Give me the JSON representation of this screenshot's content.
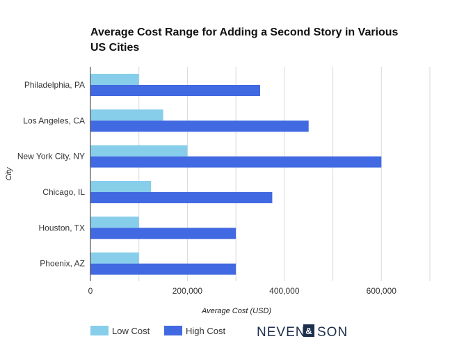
{
  "chart_data": {
    "type": "bar",
    "orientation": "horizontal",
    "title": "Average Cost Range for Adding a Second Story in Various US Cities",
    "xlabel": "Average Cost (USD)",
    "ylabel": "City",
    "categories": [
      "Philadelphia, PA",
      "Los Angeles, CA",
      "New York City, NY",
      "Chicago, IL",
      "Houston, TX",
      "Phoenix, AZ"
    ],
    "series": [
      {
        "name": "Low Cost",
        "color": "#87ceeb",
        "values": [
          100000,
          150000,
          200000,
          125000,
          100000,
          100000
        ]
      },
      {
        "name": "High Cost",
        "color": "#4169e1",
        "values": [
          350000,
          450000,
          600000,
          375000,
          300000,
          300000
        ]
      }
    ],
    "xlim": [
      0,
      700000
    ],
    "xticks": [
      0,
      200000,
      400000,
      600000
    ],
    "xtick_labels": [
      "0",
      "200,000",
      "400,000",
      "600,000"
    ],
    "grid": true,
    "legend": "bottom-left"
  },
  "logo": {
    "left": "NEVEN",
    "right": "SON",
    "mark": "&"
  }
}
